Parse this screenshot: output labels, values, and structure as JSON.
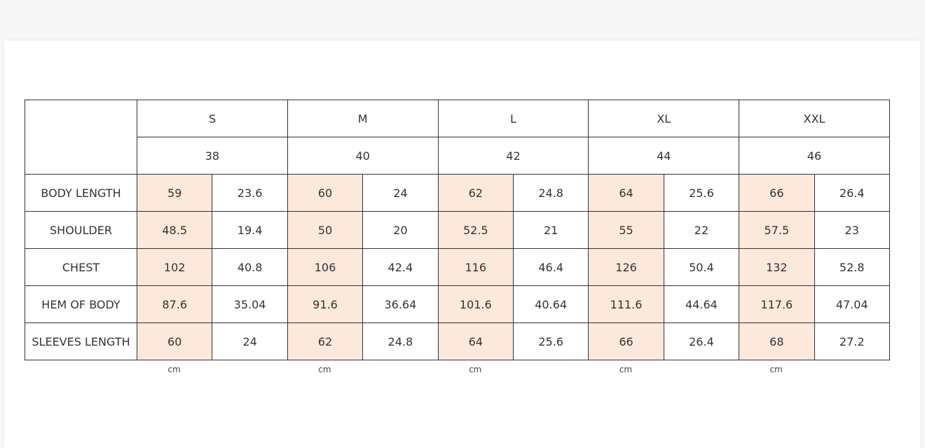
{
  "table": {
    "sizes": [
      "S",
      "M",
      "L",
      "XL",
      "XXL"
    ],
    "numbers": [
      "38",
      "40",
      "42",
      "44",
      "46"
    ],
    "rows": [
      {
        "label": "BODY LENGTH",
        "cells": [
          "59",
          "23.6",
          "60",
          "24",
          "62",
          "24.8",
          "64",
          "25.6",
          "66",
          "26.4"
        ]
      },
      {
        "label": "SHOULDER",
        "cells": [
          "48.5",
          "19.4",
          "50",
          "20",
          "52.5",
          "21",
          "55",
          "22",
          "57.5",
          "23"
        ]
      },
      {
        "label": "CHEST",
        "cells": [
          "102",
          "40.8",
          "106",
          "42.4",
          "116",
          "46.4",
          "126",
          "50.4",
          "132",
          "52.8"
        ]
      },
      {
        "label": "HEM OF BODY",
        "cells": [
          "87.6",
          "35.04",
          "91.6",
          "36.64",
          "101.6",
          "40.64",
          "111.6",
          "44.64",
          "117.6",
          "47.04"
        ]
      },
      {
        "label": "SLEEVES LENGTH",
        "cells": [
          "60",
          "24",
          "62",
          "24.8",
          "64",
          "25.6",
          "66",
          "26.4",
          "68",
          "27.2"
        ]
      }
    ],
    "units": [
      "cm",
      "cm",
      "cm",
      "cm",
      "cm"
    ]
  }
}
